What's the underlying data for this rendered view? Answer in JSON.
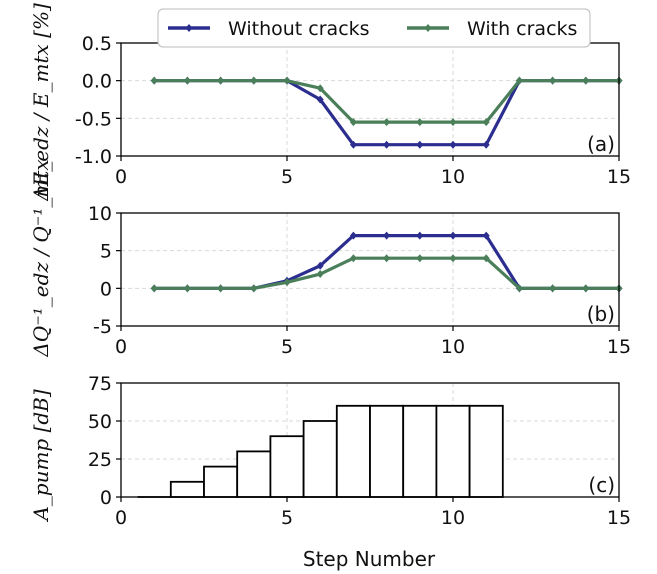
{
  "chart_data": [
    {
      "id": "a",
      "type": "line",
      "panel_label": "(a)",
      "ylabel": "ΔE_edz / E_mtx  [%]",
      "xlim": [
        0,
        15
      ],
      "ylim": [
        -1.0,
        0.5
      ],
      "xticks": [
        0,
        5,
        10,
        15
      ],
      "yticks": [
        -1.0,
        -0.5,
        0.0,
        0.5
      ],
      "ytick_labels": [
        "-1.0",
        "-0.5",
        "0.0",
        "0.5"
      ],
      "grid": true,
      "x": [
        1,
        2,
        3,
        4,
        5,
        6,
        7,
        8,
        9,
        10,
        11,
        12,
        13,
        14,
        15
      ],
      "series": [
        {
          "name": "Without cracks",
          "color": "#2b2e8f",
          "values": [
            0,
            0,
            0,
            0,
            0,
            -0.25,
            -0.85,
            -0.85,
            -0.85,
            -0.85,
            -0.85,
            0,
            0,
            0,
            0
          ]
        },
        {
          "name": "With cracks",
          "color": "#4a7f5a",
          "values": [
            0,
            0,
            0,
            0,
            0,
            -0.1,
            -0.55,
            -0.55,
            -0.55,
            -0.55,
            -0.55,
            0,
            0,
            0,
            0
          ]
        }
      ]
    },
    {
      "id": "b",
      "type": "line",
      "panel_label": "(b)",
      "ylabel": "ΔQ⁻¹_edz / Q⁻¹_mtx",
      "xlim": [
        0,
        15
      ],
      "ylim": [
        -5,
        10
      ],
      "xticks": [
        0,
        5,
        10,
        15
      ],
      "yticks": [
        -5,
        0,
        5,
        10
      ],
      "ytick_labels": [
        "-5",
        "0",
        "5",
        "10"
      ],
      "grid": true,
      "x": [
        1,
        2,
        3,
        4,
        5,
        6,
        7,
        8,
        9,
        10,
        11,
        12,
        13,
        14,
        15
      ],
      "series": [
        {
          "name": "Without cracks",
          "color": "#2b2e8f",
          "values": [
            0,
            0,
            0,
            0,
            1,
            3,
            7,
            7,
            7,
            7,
            7,
            0,
            0,
            0,
            0
          ]
        },
        {
          "name": "With cracks",
          "color": "#4a7f5a",
          "values": [
            0,
            0,
            0,
            0,
            0.8,
            1.9,
            4,
            4,
            4,
            4,
            4,
            0,
            0,
            0,
            0
          ]
        }
      ]
    },
    {
      "id": "c",
      "type": "bar",
      "panel_label": "(c)",
      "ylabel": "A_pump  [dB]",
      "xlabel": "Step Number",
      "xlim": [
        0,
        15
      ],
      "ylim": [
        0,
        75
      ],
      "xticks": [
        0,
        5,
        10,
        15
      ],
      "yticks": [
        0,
        25,
        50,
        75
      ],
      "ytick_labels": [
        "0",
        "25",
        "50",
        "75"
      ],
      "grid": true,
      "x": [
        1,
        2,
        3,
        4,
        5,
        6,
        7,
        8,
        9,
        10,
        11
      ],
      "values": [
        0,
        10,
        20,
        30,
        40,
        50,
        60,
        60,
        60,
        60,
        60
      ]
    }
  ],
  "legend": {
    "placement": "top-center",
    "entries": [
      "Without cracks",
      "With cracks"
    ]
  }
}
